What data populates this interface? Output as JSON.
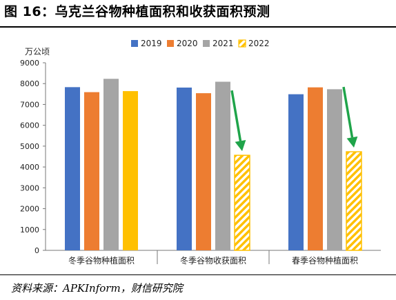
{
  "figure": {
    "title": "图 16：乌克兰谷物种植面积和收获面积预测",
    "source": "资料来源：APKInform，财信研究院"
  },
  "chart_data": {
    "type": "bar",
    "unit_label": "万公顷",
    "categories": [
      "冬季谷物种植面积",
      "冬季谷物收获面积",
      "春季谷物种植面积"
    ],
    "series": [
      {
        "name": "2019",
        "color": "#4472C4",
        "values": [
          7830,
          7810,
          7490
        ]
      },
      {
        "name": "2020",
        "color": "#ED7D31",
        "values": [
          7590,
          7540,
          7820
        ]
      },
      {
        "name": "2021",
        "color": "#A5A5A5",
        "values": [
          8230,
          8090,
          7730
        ]
      },
      {
        "name": "2022",
        "color": "#FFC000",
        "pattern": "diagonal-hatch-except-first",
        "values": [
          7640,
          4560,
          4730
        ]
      }
    ],
    "ylim": [
      0,
      9000
    ],
    "yticks": [
      0,
      1000,
      2000,
      3000,
      4000,
      5000,
      6000,
      7000,
      8000,
      9000
    ],
    "legend_position": "top",
    "grid": false,
    "annotations": [
      {
        "type": "arrow",
        "color": "#1FA44A",
        "category": "冬季谷物收获面积",
        "target_series": "2022"
      },
      {
        "type": "arrow",
        "color": "#1FA44A",
        "category": "春季谷物种植面积",
        "target_series": "2022"
      }
    ]
  }
}
